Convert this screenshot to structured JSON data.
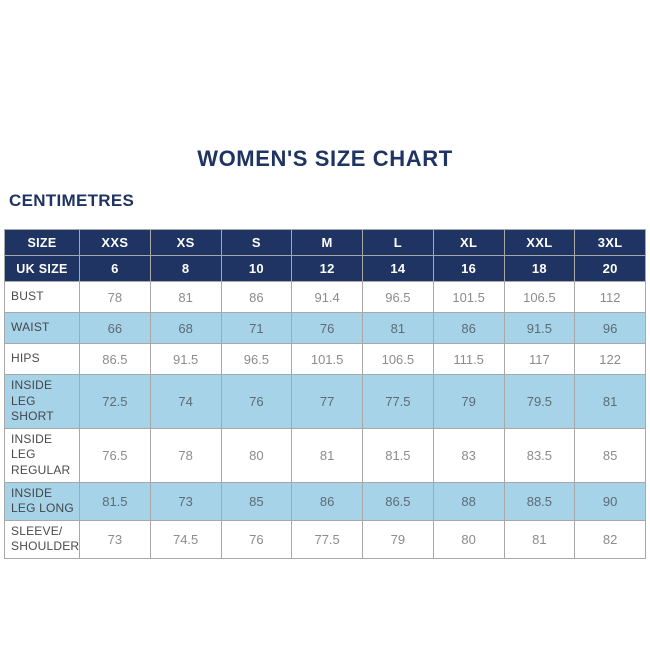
{
  "page": {
    "title": "WOMEN'S SIZE CHART",
    "units_label": "CENTIMETRES"
  },
  "colors": {
    "navy_header": "#1f3462",
    "row_blue": "#a7d3e8",
    "row_white": "#ffffff",
    "border_grey": "#a7a8aa",
    "value_text_white_row": "#8b8c8e",
    "value_text_blue_row": "#5c6b77"
  },
  "chart_data": {
    "type": "table",
    "title": "WOMEN'S SIZE CHART",
    "units": "CENTIMETRES",
    "header_rows": [
      {
        "label": "SIZE",
        "values": [
          "XXS",
          "XS",
          "S",
          "M",
          "L",
          "XL",
          "XXL",
          "3XL"
        ]
      },
      {
        "label": "UK SIZE",
        "values": [
          "6",
          "8",
          "10",
          "12",
          "14",
          "16",
          "18",
          "20"
        ]
      }
    ],
    "rows": [
      {
        "label": "BUST",
        "values": [
          "78",
          "81",
          "86",
          "91.4",
          "96.5",
          "101.5",
          "106.5",
          "112"
        ]
      },
      {
        "label": "WAIST",
        "values": [
          "66",
          "68",
          "71",
          "76",
          "81",
          "86",
          "91.5",
          "96"
        ]
      },
      {
        "label": "HIPS",
        "values": [
          "86.5",
          "91.5",
          "96.5",
          "101.5",
          "106.5",
          "111.5",
          "117",
          "122"
        ]
      },
      {
        "label": "INSIDE LEG SHORT",
        "values": [
          "72.5",
          "74",
          "76",
          "77",
          "77.5",
          "79",
          "79.5",
          "81"
        ]
      },
      {
        "label": "INSIDE LEG REGULAR",
        "values": [
          "76.5",
          "78",
          "80",
          "81",
          "81.5",
          "83",
          "83.5",
          "85"
        ]
      },
      {
        "label": "INSIDE LEG LONG",
        "values": [
          "81.5",
          "73",
          "85",
          "86",
          "86.5",
          "88",
          "88.5",
          "90"
        ]
      },
      {
        "label": "SLEEVE/ SHOULDER",
        "values": [
          "73",
          "74.5",
          "76",
          "77.5",
          "79",
          "80",
          "81",
          "82"
        ]
      }
    ]
  }
}
